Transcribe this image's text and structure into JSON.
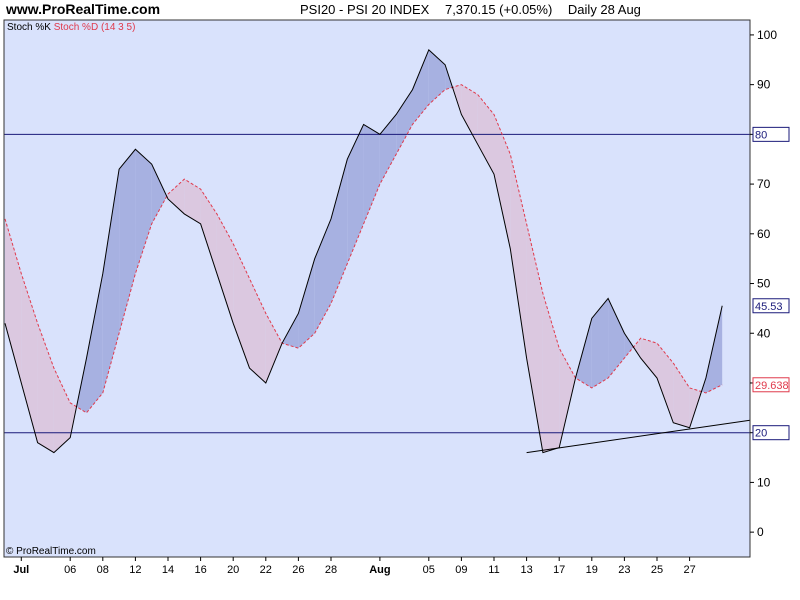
{
  "header": {
    "site": "www.ProRealTime.com",
    "instrument": "PSI20 - PSI 20 INDEX",
    "price": "7,370.15 (+0.05%)",
    "period": "Daily  28 Aug"
  },
  "footer": {
    "copyright": "© ProRealTime.com"
  },
  "colors": {
    "plot_bg": "#d9e2fc",
    "k_line": "#000000",
    "d_line": "#e03a4c",
    "fill_k_above": "#a7b1e1",
    "fill_d_above": "#dbc8e0",
    "level_line": "#1a1a7a",
    "frame": "#333333"
  },
  "chart_data": {
    "type": "line",
    "title": "PSI20 - PSI 20 INDEX",
    "legend": {
      "k_label": "Stoch %K",
      "d_label": "Stoch %D (14 3 5)"
    },
    "ylim": [
      -5,
      103
    ],
    "yticks": [
      0,
      10,
      20,
      30,
      40,
      50,
      60,
      70,
      80,
      90,
      100
    ],
    "levels": [
      80,
      20
    ],
    "x_labels": [
      {
        "i": 1,
        "label": "Jul",
        "bold": true
      },
      {
        "i": 4,
        "label": "06"
      },
      {
        "i": 6,
        "label": "08"
      },
      {
        "i": 8,
        "label": "12"
      },
      {
        "i": 10,
        "label": "14"
      },
      {
        "i": 12,
        "label": "16"
      },
      {
        "i": 14,
        "label": "20"
      },
      {
        "i": 16,
        "label": "22"
      },
      {
        "i": 18,
        "label": "26"
      },
      {
        "i": 20,
        "label": "28"
      },
      {
        "i": 23,
        "label": "Aug",
        "bold": true
      },
      {
        "i": 26,
        "label": "05"
      },
      {
        "i": 28,
        "label": "09"
      },
      {
        "i": 30,
        "label": "11"
      },
      {
        "i": 32,
        "label": "13"
      },
      {
        "i": 34,
        "label": "17"
      },
      {
        "i": 36,
        "label": "19"
      },
      {
        "i": 38,
        "label": "23"
      },
      {
        "i": 40,
        "label": "25"
      },
      {
        "i": 42,
        "label": "27"
      }
    ],
    "series": [
      {
        "name": "Stoch %K",
        "values": [
          42,
          30,
          18,
          16,
          19,
          35,
          52,
          73,
          77,
          74,
          67,
          64,
          62,
          52,
          42,
          33,
          30,
          38,
          44,
          55,
          63,
          75,
          82,
          80,
          84,
          89,
          97,
          94,
          84,
          78,
          72,
          57,
          35,
          16,
          17,
          31,
          43,
          47,
          40,
          35,
          31,
          22,
          21,
          31,
          45.53
        ]
      },
      {
        "name": "Stoch %D (14 3 5)",
        "values": [
          63,
          52,
          42,
          33,
          26,
          24,
          28,
          40,
          52,
          62,
          68,
          71,
          69,
          64,
          58,
          51,
          44,
          38,
          37,
          40,
          46,
          54,
          62,
          70,
          76,
          82,
          86,
          89,
          90,
          88,
          84,
          76,
          62,
          48,
          37,
          31,
          29,
          31,
          35,
          39,
          38,
          34,
          29,
          28,
          29.638
        ]
      }
    ],
    "last_values": {
      "k": "45.53",
      "d": "29.638"
    },
    "level_labels": [
      "80",
      "20"
    ],
    "trendline": {
      "from": {
        "i": 32,
        "v": 16
      },
      "to": {
        "i": 44,
        "v": 22.5
      }
    }
  }
}
